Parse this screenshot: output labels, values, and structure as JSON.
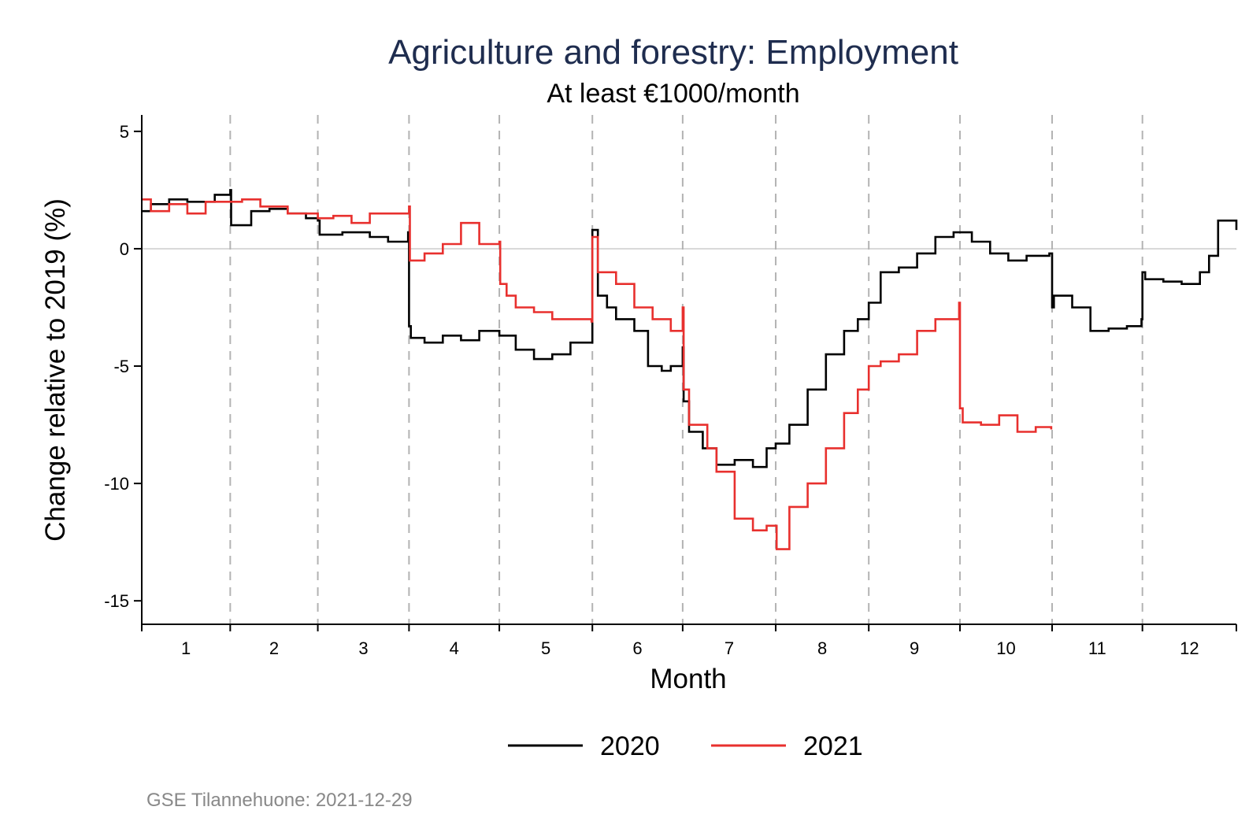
{
  "chart_data": {
    "type": "line",
    "title": "Agriculture and forestry: Employment",
    "subtitle": "At least €1000/month",
    "xlabel": "Month",
    "ylabel": "Change relative to 2019 (%)",
    "xlim": [
      1,
      13
    ],
    "ylim": [
      -16,
      5.7
    ],
    "x_ticks": [
      1,
      2,
      3,
      4,
      5,
      6,
      7,
      8,
      9,
      10,
      11,
      12
    ],
    "y_ticks": [
      5,
      0,
      -5,
      -10,
      -15
    ],
    "y_tick_labels": [
      "5",
      "0",
      "-5",
      "-10",
      "-15"
    ],
    "month_boundaries": [
      1.97,
      2.93,
      3.93,
      4.92,
      5.94,
      6.93,
      7.95,
      8.97,
      9.97,
      10.98,
      11.97
    ],
    "reference_line_y": 0,
    "legend_position": "bottom",
    "series": [
      {
        "name": "2020",
        "color": "#000000",
        "x": [
          1.0,
          1.1,
          1.3,
          1.5,
          1.8,
          1.97,
          1.98,
          2.2,
          2.4,
          2.6,
          2.8,
          2.93,
          2.95,
          3.2,
          3.5,
          3.7,
          3.92,
          3.93,
          3.95,
          4.1,
          4.3,
          4.5,
          4.7,
          4.92,
          5.1,
          5.3,
          5.5,
          5.7,
          5.93,
          5.94,
          6.0,
          6.1,
          6.2,
          6.4,
          6.55,
          6.7,
          6.8,
          6.93,
          6.94,
          7.0,
          7.15,
          7.3,
          7.5,
          7.7,
          7.85,
          7.95,
          8.1,
          8.3,
          8.5,
          8.7,
          8.85,
          8.97,
          9.1,
          9.3,
          9.5,
          9.7,
          9.9,
          10.1,
          10.3,
          10.5,
          10.7,
          10.95,
          10.98,
          11.0,
          11.2,
          11.4,
          11.6,
          11.8,
          11.96,
          11.97,
          12.0,
          12.2,
          12.4,
          12.6,
          12.7,
          12.8,
          13.0
        ],
        "y": [
          1.6,
          1.9,
          2.1,
          2.0,
          2.3,
          2.5,
          1.0,
          1.6,
          1.7,
          1.5,
          1.3,
          1.2,
          0.6,
          0.7,
          0.5,
          0.3,
          0.7,
          -3.3,
          -3.8,
          -4.0,
          -3.7,
          -3.9,
          -3.5,
          -3.7,
          -4.3,
          -4.7,
          -4.5,
          -4.0,
          -4.0,
          0.8,
          -2.0,
          -2.5,
          -3.0,
          -3.5,
          -5.0,
          -5.2,
          -5.0,
          -4.2,
          -6.5,
          -7.8,
          -8.5,
          -9.2,
          -9.0,
          -9.3,
          -8.5,
          -8.3,
          -7.5,
          -6.0,
          -4.5,
          -3.5,
          -3.0,
          -2.3,
          -1.0,
          -0.8,
          -0.2,
          0.5,
          0.7,
          0.3,
          -0.2,
          -0.5,
          -0.3,
          -0.2,
          -2.5,
          -2.0,
          -2.5,
          -3.5,
          -3.4,
          -3.3,
          -3.0,
          -1.0,
          -1.3,
          -1.4,
          -1.5,
          -1.0,
          -0.3,
          1.2,
          0.8
        ]
      },
      {
        "name": "2021",
        "color": "#e8302e",
        "x": [
          1.0,
          1.1,
          1.3,
          1.5,
          1.7,
          1.97,
          2.1,
          2.3,
          2.6,
          2.93,
          3.1,
          3.3,
          3.5,
          3.7,
          3.93,
          3.94,
          4.1,
          4.3,
          4.5,
          4.7,
          4.92,
          4.93,
          5.0,
          5.1,
          5.3,
          5.5,
          5.7,
          5.93,
          5.94,
          6.0,
          6.2,
          6.4,
          6.6,
          6.8,
          6.93,
          6.94,
          7.0,
          7.2,
          7.3,
          7.5,
          7.7,
          7.85,
          7.96,
          8.1,
          8.3,
          8.5,
          8.7,
          8.85,
          8.97,
          9.1,
          9.3,
          9.5,
          9.7,
          9.96,
          9.97,
          10.0,
          10.2,
          10.4,
          10.6,
          10.8,
          10.97
        ],
        "y": [
          2.1,
          1.6,
          1.9,
          1.5,
          2.0,
          2.0,
          2.1,
          1.8,
          1.5,
          1.3,
          1.4,
          1.1,
          1.5,
          1.5,
          1.8,
          -0.5,
          -0.2,
          0.2,
          1.1,
          0.2,
          0.3,
          -1.5,
          -2.0,
          -2.5,
          -2.7,
          -3.0,
          -3.0,
          -3.1,
          0.5,
          -1.0,
          -1.5,
          -2.5,
          -3.0,
          -3.5,
          -2.5,
          -6.0,
          -7.5,
          -8.5,
          -9.5,
          -11.5,
          -12.0,
          -11.8,
          -12.8,
          -11.0,
          -10.0,
          -8.5,
          -7.0,
          -6.0,
          -5.0,
          -4.8,
          -4.5,
          -3.5,
          -3.0,
          -2.3,
          -6.8,
          -7.4,
          -7.5,
          -7.1,
          -7.8,
          -7.6,
          -7.7
        ]
      }
    ],
    "note": "GSE Tilannehuone: 2021-12-29",
    "title_color": "#1f2d4f",
    "note_color": "#888888"
  }
}
